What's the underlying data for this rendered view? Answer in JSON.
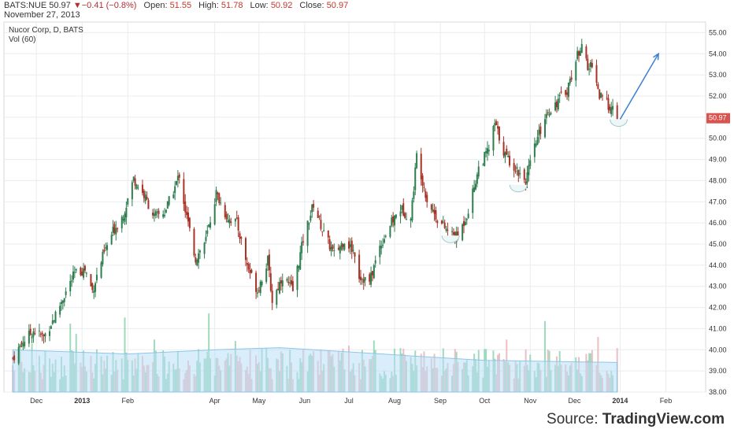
{
  "header": {
    "symbol": "BATS:NUE",
    "last": "50.97",
    "change": "−0.41 (−0.8%)",
    "open_label": "Open:",
    "open": "51.55",
    "high_label": "High:",
    "high": "51.78",
    "low_label": "Low:",
    "low": "50.92",
    "close_label": "Close:",
    "close": "50.97",
    "date": "November 27, 2013"
  },
  "source": {
    "prefix": "Source: ",
    "brand": "TradingView.com"
  },
  "colors": {
    "up": "#2e7d4f",
    "down": "#a93226",
    "vol_up": "#8fd4b0",
    "vol_down": "#e8b4b8",
    "vol_ma": "#b9dff5",
    "price_tag": "#d9534f",
    "arrow": "#3b7fd6",
    "grid": "#e9ecef"
  },
  "chart_data": {
    "type": "candlestick",
    "title": "Nucor Corp, D, BATS",
    "indicator": "Vol (60)",
    "ylim": [
      38.0,
      55.5
    ],
    "y_ticks": [
      "38.00",
      "39.00",
      "40.00",
      "41.00",
      "42.00",
      "43.00",
      "44.00",
      "45.00",
      "46.00",
      "47.00",
      "48.00",
      "49.00",
      "50.00",
      "51.00",
      "52.00",
      "53.00",
      "54.00",
      "55.00"
    ],
    "last_price_label": "50.97",
    "x_ticks": [
      {
        "label": "Dec",
        "date": "2012-12-01"
      },
      {
        "label": "2013",
        "date": "2013-01-01",
        "bold": true
      },
      {
        "label": "Feb",
        "date": "2013-02-01"
      },
      {
        "label": "Apr",
        "date": "2013-04-01"
      },
      {
        "label": "May",
        "date": "2013-05-01"
      },
      {
        "label": "Jun",
        "date": "2013-06-01"
      },
      {
        "label": "Jul",
        "date": "2013-07-01"
      },
      {
        "label": "Aug",
        "date": "2013-08-01"
      },
      {
        "label": "Sep",
        "date": "2013-09-01"
      },
      {
        "label": "Oct",
        "date": "2013-10-01"
      },
      {
        "label": "Nov",
        "date": "2013-11-01"
      },
      {
        "label": "Dec",
        "date": "2013-12-01"
      },
      {
        "label": "2014",
        "date": "2014-01-01",
        "bold": true
      },
      {
        "label": "Feb",
        "date": "2014-02-01"
      }
    ],
    "close_path": [
      [
        "2012-11-15",
        39.6
      ],
      [
        "2012-11-22",
        40.4
      ],
      [
        "2012-11-29",
        40.9
      ],
      [
        "2012-12-06",
        40.6
      ],
      [
        "2012-12-13",
        41.5
      ],
      [
        "2012-12-20",
        42.6
      ],
      [
        "2012-12-27",
        43.6
      ],
      [
        "2013-01-03",
        43.8
      ],
      [
        "2013-01-08",
        42.8
      ],
      [
        "2013-01-15",
        44.4
      ],
      [
        "2013-01-22",
        45.6
      ],
      [
        "2013-01-29",
        46.4
      ],
      [
        "2013-02-05",
        48.1
      ],
      [
        "2013-02-12",
        47.3
      ],
      [
        "2013-02-19",
        46.3
      ],
      [
        "2013-02-26",
        46.5
      ],
      [
        "2013-03-05",
        47.7
      ],
      [
        "2013-03-08",
        48.3
      ],
      [
        "2013-03-12",
        46.6
      ],
      [
        "2013-03-19",
        44.3
      ],
      [
        "2013-03-26",
        45.2
      ],
      [
        "2013-04-02",
        47.4
      ],
      [
        "2013-04-09",
        46.3
      ],
      [
        "2013-04-16",
        46.0
      ],
      [
        "2013-04-23",
        44.0
      ],
      [
        "2013-04-30",
        42.8
      ],
      [
        "2013-05-07",
        44.2
      ],
      [
        "2013-05-10",
        42.3
      ],
      [
        "2013-05-17",
        43.5
      ],
      [
        "2013-05-24",
        42.8
      ],
      [
        "2013-05-31",
        45.2
      ],
      [
        "2013-06-07",
        46.9
      ],
      [
        "2013-06-14",
        45.5
      ],
      [
        "2013-06-21",
        44.5
      ],
      [
        "2013-06-28",
        45.2
      ],
      [
        "2013-07-05",
        44.6
      ],
      [
        "2013-07-08",
        43.5
      ],
      [
        "2013-07-15",
        43.2
      ],
      [
        "2013-07-22",
        44.9
      ],
      [
        "2013-07-29",
        45.9
      ],
      [
        "2013-08-05",
        46.7
      ],
      [
        "2013-08-12",
        46.2
      ],
      [
        "2013-08-16",
        49.2
      ],
      [
        "2013-08-23",
        47.1
      ],
      [
        "2013-08-30",
        46.2
      ],
      [
        "2013-09-06",
        45.6
      ],
      [
        "2013-09-13",
        45.3
      ],
      [
        "2013-09-20",
        46.6
      ],
      [
        "2013-09-27",
        48.6
      ],
      [
        "2013-10-04",
        49.5
      ],
      [
        "2013-10-08",
        50.7
      ],
      [
        "2013-10-15",
        49.2
      ],
      [
        "2013-10-22",
        48.6
      ],
      [
        "2013-10-29",
        48.0
      ],
      [
        "2013-11-05",
        49.8
      ],
      [
        "2013-11-12",
        51.2
      ],
      [
        "2013-11-19",
        51.7
      ],
      [
        "2013-11-26",
        52.3
      ],
      [
        "2013-12-03",
        53.9
      ],
      [
        "2013-12-06",
        54.6
      ],
      [
        "2013-12-10",
        53.2
      ],
      [
        "2013-12-13",
        53.6
      ],
      [
        "2013-12-18",
        52.0
      ],
      [
        "2013-12-24",
        51.6
      ],
      [
        "2013-12-30",
        50.97
      ]
    ],
    "volume_ma_path": [
      [
        "2012-11-15",
        40.0
      ],
      [
        "2013-02-01",
        39.8
      ],
      [
        "2013-04-01",
        40.0
      ],
      [
        "2013-05-15",
        40.1
      ],
      [
        "2013-07-01",
        39.9
      ],
      [
        "2013-08-15",
        39.7
      ],
      [
        "2013-10-01",
        39.5
      ],
      [
        "2013-12-30",
        39.4
      ]
    ],
    "annotations": [
      {
        "type": "arc",
        "at": "2013-09-08",
        "price": 45.4
      },
      {
        "type": "arc",
        "at": "2013-10-24",
        "price": 47.8
      },
      {
        "type": "arc",
        "at": "2013-12-31",
        "price": 50.9
      },
      {
        "type": "arrow",
        "from": [
          "2014-01-01",
          50.9
        ],
        "to": [
          "2014-01-27",
          54.0
        ]
      }
    ]
  }
}
